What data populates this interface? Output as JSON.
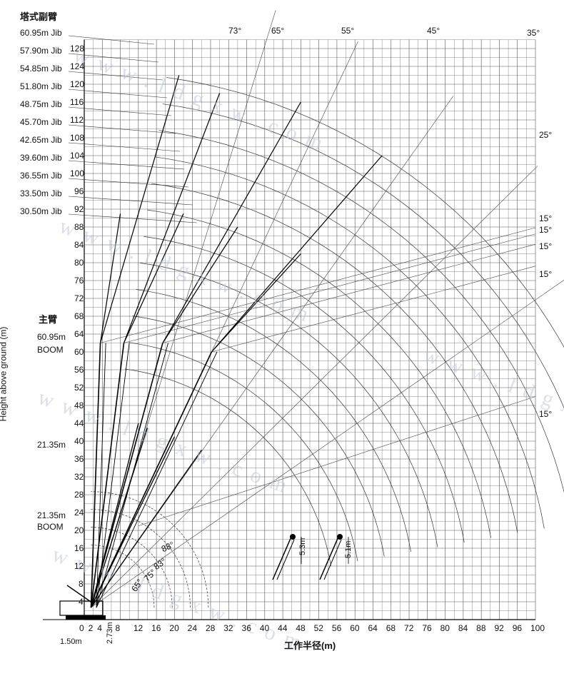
{
  "title_jib": "塔式副臂",
  "title_boom": "主臂",
  "y_axis_label": "Height above ground (m)",
  "x_axis_label": "工作半径(m)",
  "x_ticks": [
    "0",
    "2",
    "4",
    "8",
    "12",
    "16",
    "20",
    "24",
    "28",
    "32",
    "36",
    "40",
    "44",
    "48",
    "52",
    "56",
    "60",
    "64",
    "68",
    "72",
    "76",
    "80",
    "84",
    "88",
    "92",
    "96",
    "100"
  ],
  "y_ticks": [
    "4",
    "8",
    "12",
    "16",
    "20",
    "24",
    "28",
    "32",
    "36",
    "40",
    "44",
    "48",
    "52",
    "56",
    "60",
    "64",
    "68",
    "72",
    "76",
    "80",
    "84",
    "88",
    "92",
    "96",
    "100",
    "104",
    "108",
    "112",
    "116",
    "120",
    "124",
    "128"
  ],
  "jib_labels": [
    "60.95m Jib",
    "57.90m Jib",
    "54.85m Jib",
    "51.80m Jib",
    "48.75m Jib",
    "45.70m Jib",
    "42.65m Jib",
    "39.60m Jib",
    "36.55m Jib",
    "33.50m Jib",
    "30.50m Jib"
  ],
  "boom_labels": {
    "boom_top_length": "60.95m",
    "boom_top_word": "BOOM",
    "boom_mid_length": "21.35m",
    "boom_low_length": "21.35m",
    "boom_low_word": "BOOM"
  },
  "angle_top": [
    "73°",
    "65°",
    "55°",
    "45°",
    "35°"
  ],
  "angle_right": [
    "25°",
    "15°",
    "15°",
    "15°",
    "15°",
    "15°"
  ],
  "angle_boom": [
    "88°",
    "83°",
    "75°",
    "65°"
  ],
  "dims": {
    "offset_x": "1.50m",
    "offset_y": "2.73m",
    "sheave_a": "5.3m",
    "sheave_b": "5.1m"
  },
  "watermark": [
    "w w w . l d g x w . c o m"
  ]
}
